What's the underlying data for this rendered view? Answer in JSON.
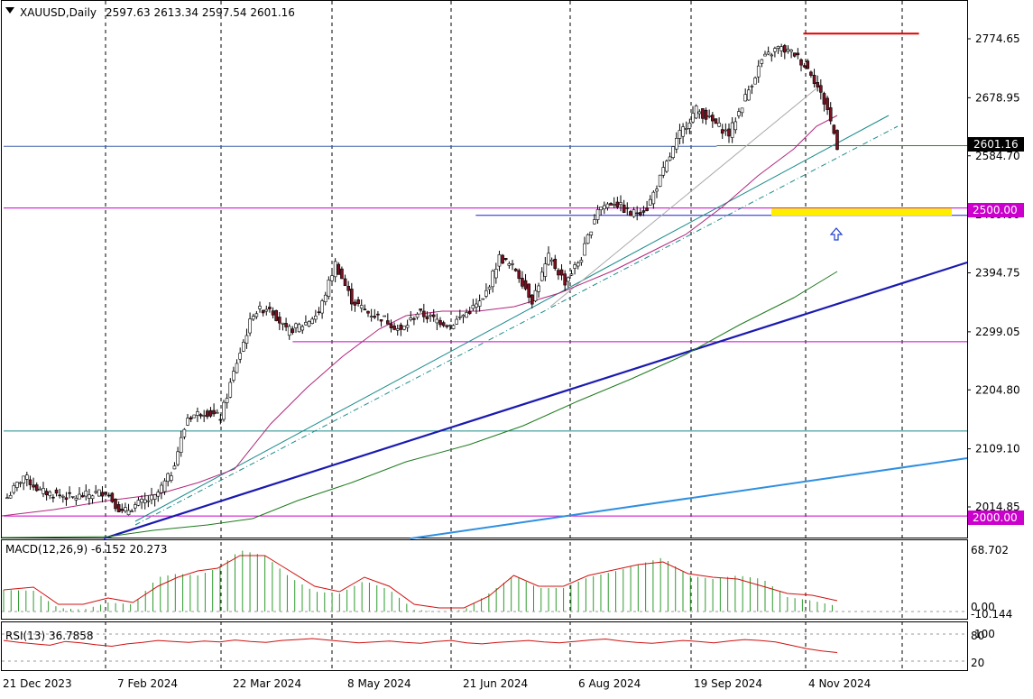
{
  "header": {
    "symbol": "XAUUSD,Daily",
    "ohlc": "2597.63 2613.34 2597.54 2601.16"
  },
  "chart_data": {
    "type": "candlestick",
    "symbol": "XAUUSD",
    "timeframe": "Daily",
    "price_axis": {
      "ticks": [
        "2774.65",
        "2678.95",
        "2584.70",
        "2489.00",
        "2394.75",
        "2299.05",
        "2204.80",
        "2109.10",
        "2014.85"
      ],
      "current_price_label": "2601.16",
      "current_price": 2601.16,
      "level_labels": [
        "2500.00",
        "2000.00"
      ]
    },
    "time_axis": {
      "labels": [
        "21 Dec 2023",
        "7 Feb 2024",
        "22 Mar 2024",
        "8 May 2024",
        "21 Jun 2024",
        "6 Aug 2024",
        "19 Sep 2024",
        "4 Nov 2024"
      ]
    },
    "close_path": [
      [
        0,
        2030
      ],
      [
        5,
        2065
      ],
      [
        10,
        2040
      ],
      [
        15,
        2035
      ],
      [
        20,
        2030
      ],
      [
        25,
        2035
      ],
      [
        30,
        2040
      ],
      [
        35,
        2005
      ],
      [
        40,
        2020
      ],
      [
        45,
        2030
      ],
      [
        50,
        2070
      ],
      [
        55,
        2160
      ],
      [
        60,
        2170
      ],
      [
        65,
        2160
      ],
      [
        70,
        2250
      ],
      [
        75,
        2330
      ],
      [
        80,
        2340
      ],
      [
        85,
        2300
      ],
      [
        90,
        2310
      ],
      [
        95,
        2330
      ],
      [
        100,
        2410
      ],
      [
        105,
        2350
      ],
      [
        110,
        2330
      ],
      [
        115,
        2320
      ],
      [
        120,
        2300
      ],
      [
        125,
        2330
      ],
      [
        130,
        2320
      ],
      [
        135,
        2310
      ],
      [
        140,
        2330
      ],
      [
        145,
        2350
      ],
      [
        150,
        2420
      ],
      [
        155,
        2400
      ],
      [
        160,
        2350
      ],
      [
        165,
        2420
      ],
      [
        170,
        2380
      ],
      [
        175,
        2420
      ],
      [
        180,
        2500
      ],
      [
        185,
        2510
      ],
      [
        190,
        2490
      ],
      [
        195,
        2500
      ],
      [
        200,
        2560
      ],
      [
        205,
        2620
      ],
      [
        210,
        2660
      ],
      [
        215,
        2640
      ],
      [
        220,
        2620
      ],
      [
        225,
        2680
      ],
      [
        230,
        2740
      ],
      [
        235,
        2760
      ],
      [
        240,
        2750
      ],
      [
        245,
        2720
      ],
      [
        250,
        2660
      ],
      [
        253,
        2601.16
      ]
    ],
    "horizontal_levels": [
      {
        "price": 2783,
        "color": "#e00000",
        "from": 0.83,
        "to": 0.95
      },
      {
        "price": 2601.16,
        "color": "#228b22",
        "from": 0.74,
        "to": 1.0
      },
      {
        "price": 2600,
        "color": "#3a5fa8",
        "from": 0.0,
        "to": 0.74
      },
      {
        "price": 2500,
        "color": "#cc00cc",
        "from": 0.0,
        "to": 1.0
      },
      {
        "price": 2488,
        "color": "#1f1fd0",
        "from": 0.49,
        "to": 1.0
      },
      {
        "price": 2283,
        "color": "#cc00cc",
        "from": 0.3,
        "to": 1.0
      },
      {
        "price": 2138,
        "color": "#1a8a8a",
        "from": 0.0,
        "to": 1.0
      },
      {
        "price": 2000,
        "color": "#cc00cc",
        "from": 0.0,
        "to": 1.0
      }
    ],
    "macd": {
      "label": "MACD(12,26,9) -6.152 20.273",
      "axis_ticks": [
        "68.702",
        "0.00",
        "-10.144"
      ],
      "signal_path": [
        [
          0,
          24
        ],
        [
          12,
          27
        ],
        [
          22,
          8
        ],
        [
          32,
          8
        ],
        [
          42,
          15
        ],
        [
          52,
          10
        ],
        [
          62,
          28
        ],
        [
          70,
          38
        ],
        [
          78,
          45
        ],
        [
          86,
          48
        ],
        [
          95,
          62
        ],
        [
          105,
          62
        ],
        [
          115,
          45
        ],
        [
          125,
          28
        ],
        [
          135,
          22
        ],
        [
          145,
          38
        ],
        [
          155,
          28
        ],
        [
          165,
          8
        ],
        [
          175,
          4
        ],
        [
          185,
          4
        ],
        [
          195,
          17
        ],
        [
          205,
          40
        ],
        [
          215,
          28
        ],
        [
          225,
          28
        ],
        [
          235,
          40
        ],
        [
          245,
          46
        ],
        [
          255,
          52
        ],
        [
          265,
          55
        ],
        [
          275,
          42
        ],
        [
          285,
          38
        ],
        [
          295,
          36
        ],
        [
          305,
          28
        ],
        [
          315,
          20
        ],
        [
          325,
          18
        ],
        [
          335,
          12
        ]
      ],
      "hist_path": [
        [
          0,
          24
        ],
        [
          12,
          23
        ],
        [
          22,
          4
        ],
        [
          32,
          2
        ],
        [
          42,
          10
        ],
        [
          52,
          8
        ],
        [
          62,
          38
        ],
        [
          70,
          42
        ],
        [
          78,
          40
        ],
        [
          86,
          48
        ],
        [
          95,
          68
        ],
        [
          105,
          62
        ],
        [
          115,
          38
        ],
        [
          125,
          22
        ],
        [
          135,
          20
        ],
        [
          145,
          34
        ],
        [
          155,
          24
        ],
        [
          165,
          2
        ],
        [
          175,
          0
        ],
        [
          185,
          2
        ],
        [
          195,
          20
        ],
        [
          205,
          40
        ],
        [
          215,
          26
        ],
        [
          225,
          26
        ],
        [
          235,
          38
        ],
        [
          245,
          44
        ],
        [
          255,
          52
        ],
        [
          265,
          60
        ],
        [
          275,
          40
        ],
        [
          285,
          36
        ],
        [
          295,
          40
        ],
        [
          305,
          36
        ],
        [
          315,
          16
        ],
        [
          325,
          12
        ],
        [
          335,
          6
        ]
      ]
    },
    "rsi": {
      "label": "RSI(13) 36.7858",
      "axis_ticks": [
        "100",
        "80",
        "20"
      ],
      "values": [
        62,
        58,
        55,
        52,
        60,
        57,
        53,
        50,
        55,
        58,
        62,
        60,
        58,
        61,
        59,
        63,
        60,
        58,
        62,
        64,
        66,
        63,
        60,
        57,
        59,
        61,
        58,
        56,
        60,
        62,
        57,
        55,
        58,
        60,
        62,
        59,
        57,
        60,
        63,
        65,
        61,
        58,
        56,
        59,
        62,
        60,
        57,
        61,
        64,
        62,
        59,
        52,
        45,
        40,
        36.79
      ]
    }
  }
}
